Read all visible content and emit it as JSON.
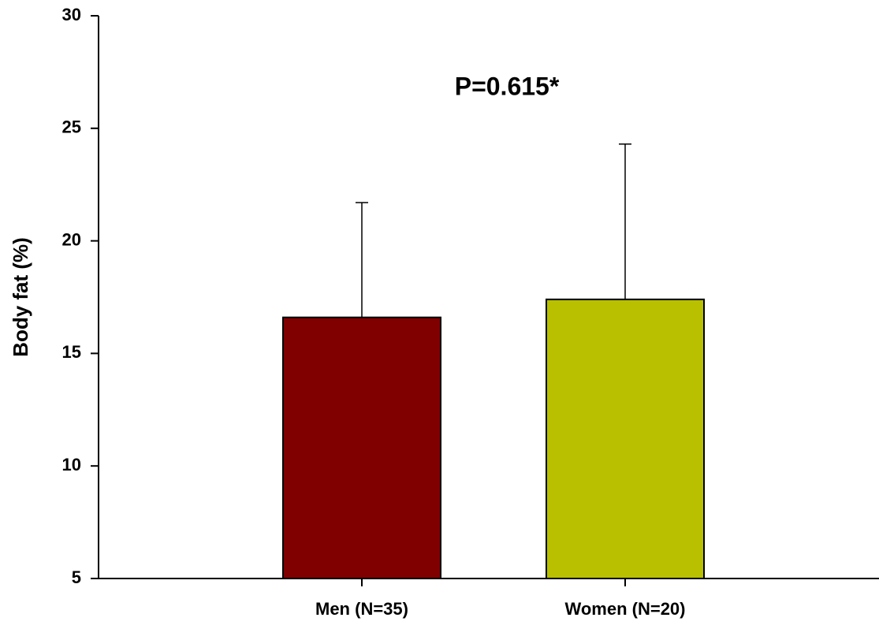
{
  "chart_data": {
    "type": "bar",
    "categories": [
      "Men (N=35)",
      "Women (N=20)"
    ],
    "values": [
      16.6,
      17.4
    ],
    "error_upper": [
      21.7,
      24.3
    ],
    "colors": [
      "#800000",
      "#b8c000"
    ],
    "ylabel": "Body fat (%)",
    "xlabel": "",
    "title": "",
    "ylim": [
      5,
      30
    ],
    "yticks": [
      "5",
      "10",
      "15",
      "20",
      "25",
      "30"
    ],
    "annotation": "P=0.615*",
    "grid": false,
    "legend": "none"
  }
}
